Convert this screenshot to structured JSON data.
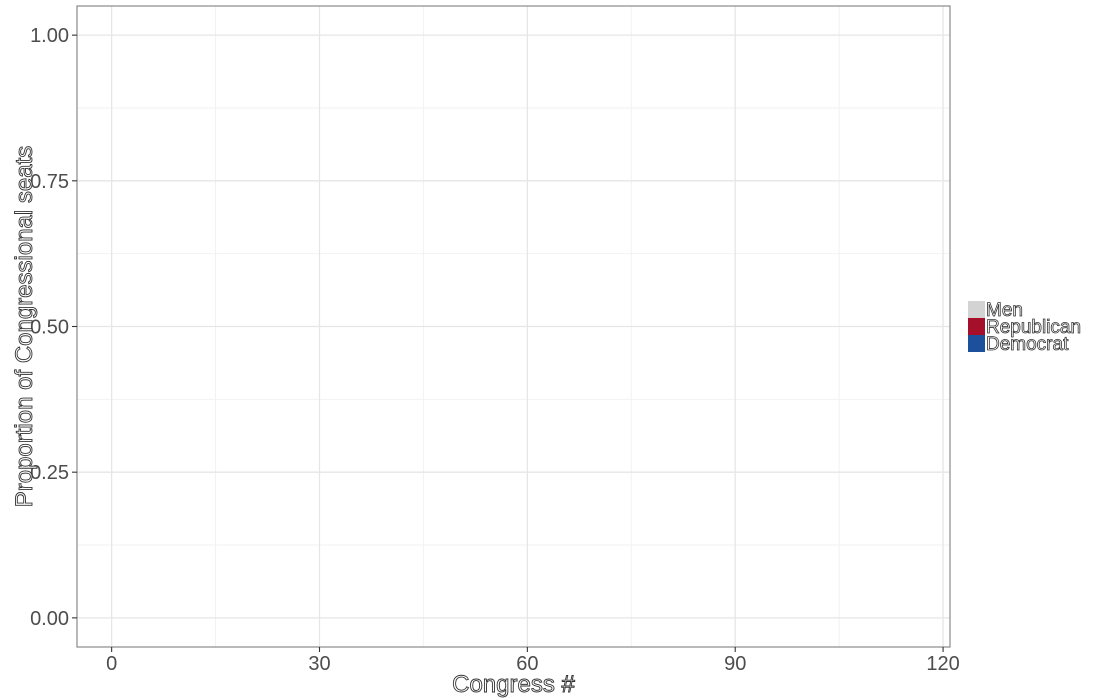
{
  "chart_data": {
    "type": "area",
    "title": "",
    "xlabel": "Congress #",
    "ylabel": "Proportion of Congressional seats",
    "xlim": [
      -5,
      121
    ],
    "ylim": [
      -0.05,
      1.05
    ],
    "x_ticks": [
      0,
      30,
      60,
      90,
      120
    ],
    "x_minor_ticks": [
      15,
      45,
      75,
      105
    ],
    "y_ticks": [
      0.0,
      0.25,
      0.5,
      0.75,
      1.0
    ],
    "y_tick_labels": [
      "0.00",
      "0.25",
      "0.50",
      "0.75",
      "1.00"
    ],
    "y_minor_ticks": [
      0.125,
      0.375,
      0.625,
      0.875
    ],
    "grid": true,
    "legend_position": "right",
    "series": [
      {
        "name": "Men",
        "color": "#d3d3d3",
        "values": []
      },
      {
        "name": "Republican",
        "color": "#a50f29",
        "values": []
      },
      {
        "name": "Democrat",
        "color": "#1c4f9c",
        "values": []
      }
    ]
  }
}
